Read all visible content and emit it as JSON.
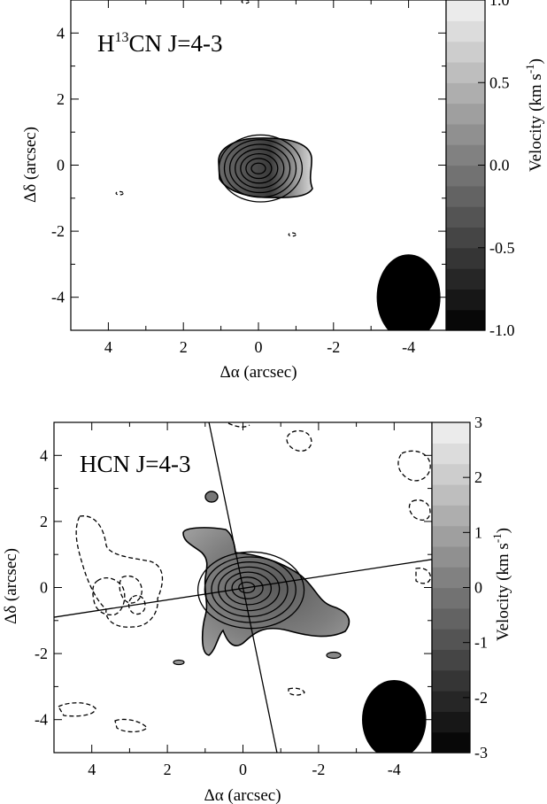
{
  "chart_data": [
    {
      "type": "contour",
      "title": "H13CN J=4-3",
      "title_main": "H",
      "title_sup": "13",
      "title_rest": "CN J=4-3",
      "xlabel": "Δα (arcsec)",
      "ylabel": "Δδ (arcsec)",
      "xlim": [
        5,
        -5
      ],
      "ylim": [
        -5,
        5
      ],
      "x_ticks": [
        4,
        2,
        0,
        -2,
        -4
      ],
      "y_ticks": [
        4,
        2,
        0,
        -2,
        -4
      ],
      "colorbar": {
        "label": "Velocity (km s",
        "label_sup": "-1",
        "label_end": ")",
        "range": [
          -1.0,
          1.0
        ],
        "levels": 16,
        "ticks": [
          1.0,
          0.5,
          0.0,
          -0.5,
          -1.0
        ],
        "tick_labels": [
          "1.0",
          "0.5",
          "0.0",
          "-0.5",
          "-1.0"
        ]
      },
      "contours": {
        "center": [
          0.0,
          -0.1
        ],
        "solid_levels": 7,
        "negative_blobs": [
          [
            -0.9,
            -2.1
          ],
          [
            3.7,
            -0.85
          ],
          [
            0.35,
            4.95
          ]
        ]
      },
      "beam": {
        "x": -4.0,
        "y": -4.0,
        "major": 1.3,
        "minor": 0.85
      },
      "grid": false
    },
    {
      "type": "contour",
      "title": "HCN J=4-3",
      "xlabel": "Δα (arcsec)",
      "ylabel": "Δδ (arcsec)",
      "xlim": [
        5,
        -5
      ],
      "ylim": [
        -5,
        5
      ],
      "x_ticks": [
        4,
        2,
        0,
        -2,
        -4
      ],
      "y_ticks": [
        4,
        2,
        0,
        -2,
        -4
      ],
      "colorbar": {
        "label": "Velocity (km s",
        "label_sup": "-1",
        "label_end": ")",
        "range": [
          -3,
          3
        ],
        "levels": 16,
        "ticks": [
          3,
          2,
          1,
          0,
          -1,
          -2,
          -3
        ],
        "tick_labels": [
          "3",
          "2",
          "1",
          "0",
          "-1",
          "-2",
          "-3"
        ]
      },
      "contours": {
        "center": [
          -0.1,
          0.0
        ],
        "solid_levels": 7
      },
      "lines": [
        {
          "from": [
            0.9,
            5.0
          ],
          "to": [
            -0.9,
            -5.0
          ]
        },
        {
          "from": [
            5.0,
            -0.9
          ],
          "to": [
            -5.0,
            0.85
          ]
        }
      ],
      "beam": {
        "x": -4.0,
        "y": -4.0,
        "major": 1.2,
        "minor": 0.85
      },
      "grid": false
    }
  ]
}
